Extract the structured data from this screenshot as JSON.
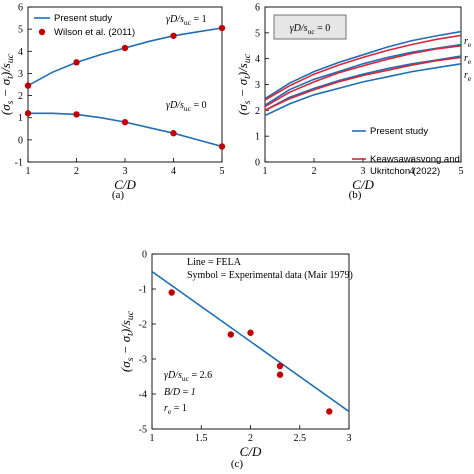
{
  "chart_data": [
    {
      "panel": "(a)",
      "type": "line",
      "xlabel": "C/D",
      "ylabel": "(σs − σt)/suc",
      "xlim": [
        1,
        5
      ],
      "ylim": [
        -1,
        6
      ],
      "xticks": [
        "1",
        "2",
        "3",
        "4",
        "5"
      ],
      "yticks": [
        "-1",
        "0",
        "1",
        "2",
        "3",
        "4",
        "5",
        "6"
      ],
      "legend": [
        {
          "label": "Present study",
          "style": "line",
          "color": "#1f6eb5"
        },
        {
          "label": "Wilson et al. (2011)",
          "style": "marker",
          "color": "#c00000"
        }
      ],
      "annotations": [
        "γD/suc = 1",
        "γD/suc = 0"
      ],
      "series": [
        {
          "name": "Present study",
          "style": "line",
          "color": "#1f6eb5",
          "x": [
            1,
            1.5,
            2,
            2.5,
            3,
            3.5,
            4,
            4.5,
            5
          ],
          "y": [
            2.45,
            3.05,
            3.5,
            3.85,
            4.15,
            4.45,
            4.7,
            4.88,
            5.05
          ]
        },
        {
          "name": "Present study",
          "style": "line",
          "color": "#1f6eb5",
          "x": [
            1,
            1.5,
            2,
            2.5,
            3,
            3.5,
            4,
            4.5,
            5
          ],
          "y": [
            1.2,
            1.2,
            1.15,
            1.0,
            0.8,
            0.55,
            0.3,
            0.0,
            -0.3
          ]
        },
        {
          "name": "Wilson et al. (2011)",
          "style": "marker",
          "color": "#c00000",
          "x": [
            1,
            2,
            3,
            4,
            5
          ],
          "y": [
            2.45,
            3.5,
            4.15,
            4.7,
            5.05
          ]
        },
        {
          "name": "Wilson et al. (2011)",
          "style": "marker",
          "color": "#c00000",
          "x": [
            1,
            2,
            3,
            4,
            5
          ],
          "y": [
            1.2,
            1.15,
            0.8,
            0.3,
            -0.3
          ]
        }
      ]
    },
    {
      "panel": "(b)",
      "type": "line",
      "xlabel": "C/D",
      "ylabel": "(σs − σt)/suc",
      "xlim": [
        1,
        5
      ],
      "ylim": [
        0,
        6
      ],
      "xticks": [
        "1",
        "2",
        "3",
        "4",
        "5"
      ],
      "yticks": [
        "0",
        "1",
        "2",
        "3",
        "4",
        "5",
        "6"
      ],
      "legend": [
        {
          "label": "Present study",
          "style": "line",
          "color": "#1f6eb5"
        },
        {
          "label": "Keawsawasvong and",
          "style": "line",
          "color": "#d7263d"
        },
        {
          "label": "Ukritchon (2022)",
          "style": "none",
          "color": "#d7263d"
        }
      ],
      "annotations": [
        "γD/suc = 0",
        "re = 1",
        "re = 0",
        "re = 0"
      ],
      "series": [
        {
          "name": "Present study",
          "style": "line",
          "color": "#1f6eb5",
          "x": [
            1,
            1.5,
            2,
            2.5,
            3,
            3.5,
            4,
            4.5,
            5
          ],
          "y": [
            2.45,
            3.05,
            3.5,
            3.85,
            4.15,
            4.45,
            4.7,
            4.88,
            5.05
          ]
        },
        {
          "name": "Keawsawasvong and Ukritchon (2022)",
          "style": "line",
          "color": "#d7263d",
          "x": [
            1,
            1.5,
            2,
            2.5,
            3,
            3.5,
            4,
            4.5,
            5
          ],
          "y": [
            2.4,
            2.95,
            3.4,
            3.75,
            4.05,
            4.32,
            4.55,
            4.75,
            4.9
          ]
        },
        {
          "name": "Present study",
          "style": "line",
          "color": "#1f6eb5",
          "x": [
            1,
            1.5,
            2,
            2.5,
            3,
            3.5,
            4,
            4.5,
            5
          ],
          "y": [
            2.2,
            2.8,
            3.2,
            3.5,
            3.8,
            4.05,
            4.25,
            4.4,
            4.55
          ]
        },
        {
          "name": "Keawsawasvong and Ukritchon (2022)",
          "style": "line",
          "color": "#d7263d",
          "x": [
            1,
            1.5,
            2,
            2.5,
            3,
            3.5,
            4,
            4.5,
            5
          ],
          "y": [
            2.15,
            2.7,
            3.1,
            3.45,
            3.72,
            3.98,
            4.2,
            4.38,
            4.5
          ]
        },
        {
          "name": "Present study",
          "style": "line",
          "color": "#1f6eb5",
          "x": [
            1,
            1.5,
            2,
            2.5,
            3,
            3.5,
            4,
            4.5,
            5
          ],
          "y": [
            2.0,
            2.5,
            2.85,
            3.15,
            3.4,
            3.62,
            3.8,
            3.95,
            4.1
          ]
        },
        {
          "name": "Keawsawasvong and Ukritchon (2022)",
          "style": "line",
          "color": "#d7263d",
          "x": [
            1,
            1.5,
            2,
            2.5,
            3,
            3.5,
            4,
            4.5,
            5
          ],
          "y": [
            2.0,
            2.45,
            2.8,
            3.1,
            3.35,
            3.55,
            3.75,
            3.92,
            4.05
          ]
        },
        {
          "name": "Present study",
          "style": "line",
          "color": "#1f6eb5",
          "x": [
            1,
            1.5,
            2,
            2.5,
            3,
            3.5,
            4,
            4.5,
            5
          ],
          "y": [
            1.8,
            2.25,
            2.6,
            2.85,
            3.1,
            3.3,
            3.5,
            3.65,
            3.8
          ]
        }
      ]
    },
    {
      "panel": "(c)",
      "type": "scatter",
      "xlabel": "C/D",
      "ylabel": "(σs − σt)/suc",
      "xlim": [
        1,
        3
      ],
      "ylim": [
        -5,
        0
      ],
      "xticks": [
        "1",
        "1.5",
        "2",
        "2.5",
        "3"
      ],
      "yticks": [
        "0",
        "-1",
        "-2",
        "-3",
        "-4",
        "-5"
      ],
      "legend": [
        {
          "label": "Line = FELA"
        },
        {
          "label": "Symbol = Experimental data (Mair 1979)"
        }
      ],
      "annotations": [
        "γD/suc = 2.6",
        "B/D = 1",
        "re = 1"
      ],
      "series": [
        {
          "name": "FELA",
          "style": "line",
          "color": "#1f6eb5",
          "x": [
            1,
            3
          ],
          "y": [
            -0.5,
            -4.5
          ]
        },
        {
          "name": "Experimental data (Mair 1979)",
          "style": "marker",
          "color": "#c00000",
          "x": [
            1.2,
            1.8,
            2.0,
            2.3,
            2.3,
            2.8
          ],
          "y": [
            -1.1,
            -2.3,
            -2.25,
            -3.2,
            -3.45,
            -4.5
          ]
        }
      ]
    }
  ],
  "panel_labels": [
    "(a)",
    "(b)",
    "(c)"
  ]
}
